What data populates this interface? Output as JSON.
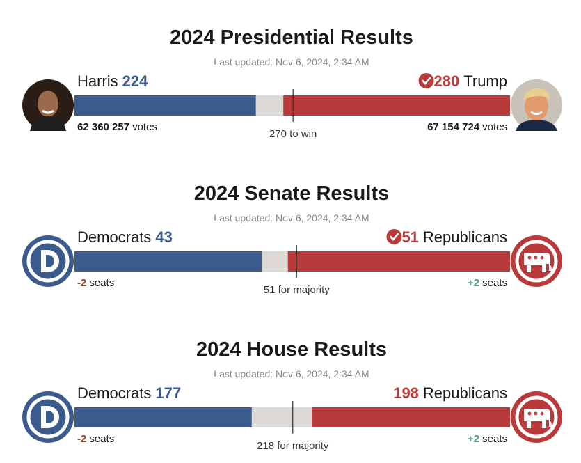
{
  "chart_data": [
    {
      "type": "bar",
      "title": "2024 Presidential Results",
      "subtitle": "Last updated: Nov 6, 2024, 2:34 AM",
      "xlim": [
        0,
        538
      ],
      "threshold": {
        "value": 270,
        "label": "270 to win"
      },
      "series": [
        {
          "name": "Harris",
          "color": "#3b5b8c",
          "values": [
            224
          ],
          "winner": false,
          "detail": {
            "value": 62360257,
            "label": "62 360 257"
          },
          "unit": "votes"
        },
        {
          "name": "Trump",
          "color": "#b83a3a",
          "values": [
            280
          ],
          "winner": true,
          "detail": {
            "value": 67154724,
            "label": "67 154 724"
          },
          "unit": "votes"
        }
      ]
    },
    {
      "type": "bar",
      "title": "2024 Senate Results",
      "subtitle": "Last updated: Nov 6, 2024, 2:34 AM",
      "xlim": [
        0,
        100
      ],
      "threshold": {
        "value": 51,
        "label": "51 for majority"
      },
      "series": [
        {
          "name": "Democrats",
          "color": "#3b5b8c",
          "values": [
            43
          ],
          "winner": false,
          "detail": -2,
          "unit": "seats"
        },
        {
          "name": "Republicans",
          "color": "#b83a3a",
          "values": [
            51
          ],
          "winner": true,
          "detail": {
            "value": 2,
            "label": "+2"
          },
          "unit": "seats"
        }
      ]
    },
    {
      "type": "bar",
      "title": "2024 House Results",
      "subtitle": "Last updated: Nov 6, 2024, 2:34 AM",
      "xlim": [
        0,
        435
      ],
      "threshold": {
        "value": 218,
        "label": "218 for majority"
      },
      "series": [
        {
          "name": "Democrats",
          "color": "#3b5b8c",
          "values": [
            177
          ],
          "winner": false,
          "detail": -2,
          "unit": "seats"
        },
        {
          "name": "Republicans",
          "color": "#b83a3a",
          "values": [
            198
          ],
          "winner": false,
          "detail": {
            "value": 2,
            "label": "+2"
          },
          "unit": "seats"
        }
      ]
    }
  ]
}
